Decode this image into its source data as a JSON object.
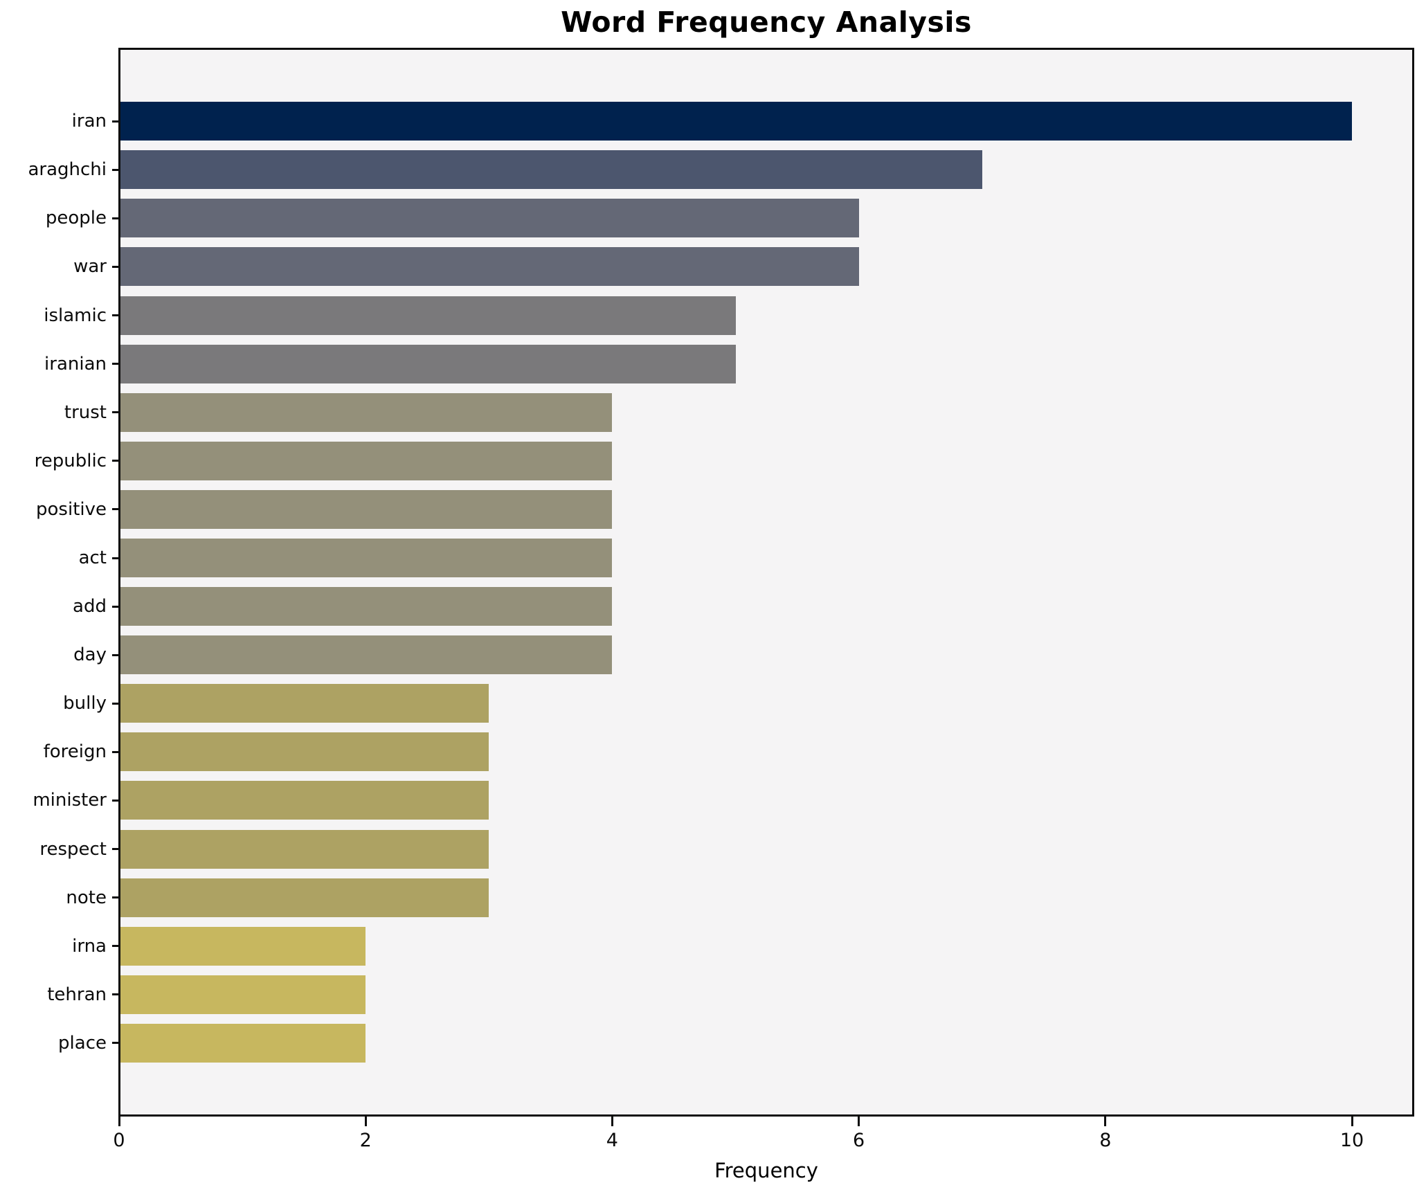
{
  "chart_data": {
    "type": "bar",
    "orientation": "horizontal",
    "title": "Word Frequency Analysis",
    "xlabel": "Frequency",
    "ylabel": "",
    "categories": [
      "iran",
      "araghchi",
      "people",
      "war",
      "islamic",
      "iranian",
      "trust",
      "republic",
      "positive",
      "act",
      "add",
      "day",
      "bully",
      "foreign",
      "minister",
      "respect",
      "note",
      "irna",
      "tehran",
      "place"
    ],
    "values": [
      10,
      7,
      6,
      6,
      5,
      5,
      4,
      4,
      4,
      4,
      4,
      4,
      3,
      3,
      3,
      3,
      3,
      2,
      2,
      2
    ],
    "bar_colors": [
      "#00224e",
      "#4c566e",
      "#646876",
      "#646876",
      "#7a797b",
      "#7a797b",
      "#94907a",
      "#94907a",
      "#94907a",
      "#94907a",
      "#94907a",
      "#94907a",
      "#ada263",
      "#ada263",
      "#ada263",
      "#ada263",
      "#ada263",
      "#c7b75f",
      "#c7b75f",
      "#c7b75f"
    ],
    "x_ticks": [
      0,
      2,
      4,
      6,
      8,
      10
    ],
    "xlim": [
      0,
      10.5
    ],
    "grid": false,
    "legend": null,
    "colors": {
      "plot_background": "#f5f4f5",
      "figure_background": "#ffffff",
      "axis": "#0e0e0e",
      "text": "#000000"
    }
  }
}
